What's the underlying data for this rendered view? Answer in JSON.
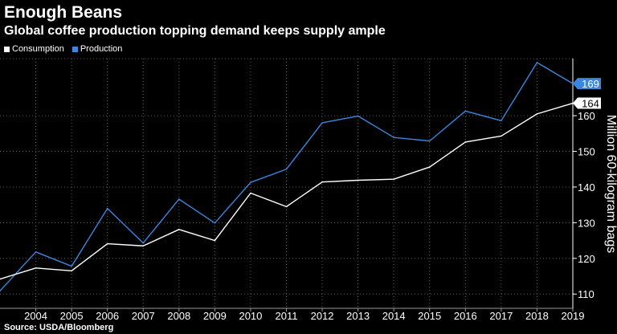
{
  "header": {
    "title": "Enough Beans",
    "subtitle": "Global coffee production topping demand keeps supply ample"
  },
  "source": "Source: USDA/Bloomberg",
  "chart_data": {
    "type": "line",
    "x": [
      "2004",
      "2005",
      "2006",
      "2007",
      "2008",
      "2009",
      "2010",
      "2011",
      "2012",
      "2013",
      "2014",
      "2015",
      "2016",
      "2017",
      "2018",
      "2019"
    ],
    "ylabel": "Million 60-kilogram bags",
    "yticks": [
      110,
      120,
      130,
      140,
      150,
      160
    ],
    "ylim": [
      106,
      176
    ],
    "grid": true,
    "legend_position": "top-left",
    "series": [
      {
        "name": "Consumption",
        "color": "#ffffff",
        "x": [
          2003,
          2004,
          2005,
          2006,
          2007,
          2008,
          2009,
          2010,
          2011,
          2012,
          2013,
          2014,
          2015,
          2016,
          2017,
          2018,
          2019
        ],
        "values": [
          114.2,
          117.3,
          116.5,
          124.1,
          123.5,
          128.1,
          125.0,
          138.3,
          134.5,
          141.4,
          141.9,
          142.2,
          145.6,
          152.6,
          154.3,
          160.5,
          163.5
        ],
        "end_label": "164"
      },
      {
        "name": "Production",
        "color": "#3b86e0",
        "x": [
          2003,
          2004,
          2005,
          2006,
          2007,
          2008,
          2009,
          2010,
          2011,
          2012,
          2013,
          2014,
          2015,
          2016,
          2017,
          2018,
          2019
        ],
        "values": [
          110.9,
          121.8,
          117.8,
          134.0,
          124.3,
          136.6,
          129.9,
          141.3,
          145.0,
          158.0,
          159.9,
          153.9,
          152.9,
          161.3,
          158.6,
          174.9,
          169.0
        ],
        "end_label": "169"
      }
    ]
  }
}
